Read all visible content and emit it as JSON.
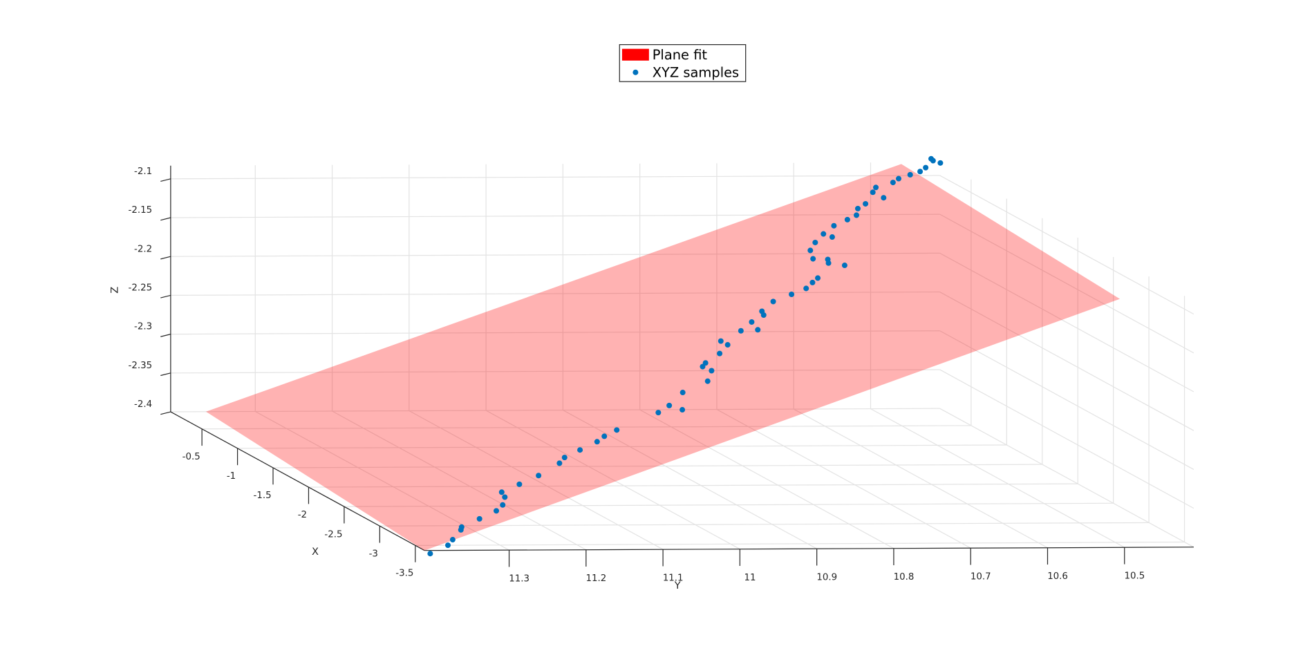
{
  "chart_data": {
    "type": "scatter3d",
    "xlabel": "X",
    "ylabel": "Y",
    "zlabel": "Z",
    "xlim": [
      -0.06,
      -3.63
    ],
    "ylim": [
      11.41,
      10.41
    ],
    "zlim": [
      -2.4,
      -2.083
    ],
    "xticks": [
      -0.5,
      -1,
      -1.5,
      -2,
      -2.5,
      -3,
      -3.5
    ],
    "yticks": [
      11.3,
      11.2,
      11.1,
      11,
      10.9,
      10.8,
      10.7,
      10.6,
      10.5
    ],
    "zticks": [
      -2.1,
      -2.15,
      -2.2,
      -2.25,
      -2.3,
      -2.35,
      -2.4
    ],
    "grid": true,
    "legend": "top",
    "series": [
      {
        "name": "Plane fit",
        "color": "#ff0000",
        "kind": "surface",
        "opacity": 0.3,
        "x": [
          -3.63,
          -0.556,
          -0.556,
          -3.63
        ],
        "y": [
          11.41,
          11.41,
          10.506,
          10.506
        ],
        "z": [
          -2.4,
          -2.375,
          -2.06,
          -2.08
        ]
      },
      {
        "name": "XYZ samples",
        "color": "#0072bd",
        "kind": "scatter",
        "x": [
          -3.71,
          -3.678,
          -3.615,
          -3.525,
          -3.492,
          -3.462,
          -3.439,
          -3.388,
          -3.288,
          -3.201,
          -3.179,
          -3.157,
          -3.083,
          -3.036,
          -3.004,
          -2.974,
          -2.935,
          -2.915,
          -2.872,
          -2.831,
          -2.961,
          -2.718,
          -2.69,
          -2.561,
          -2.457,
          -2.422,
          -2.361,
          -2.279,
          -2.183,
          -2.141,
          -2.076,
          -2.216,
          -1.982,
          -2.039,
          -1.892,
          -1.89,
          -1.879,
          -1.828,
          -1.794,
          -1.5,
          -1.365,
          -1.578,
          -1.631,
          -1.75,
          -1.282,
          -1.283,
          -1.203,
          -1.134,
          -1.118,
          -1.105,
          -1.016,
          -0.994,
          -0.859,
          -0.815,
          -1.0,
          -0.829,
          -0.811,
          -0.811,
          -0.81,
          -0.791,
          -0.684,
          -0.733,
          -0.792
        ],
        "y": [
          11.41,
          11.384,
          11.372,
          11.353,
          11.349,
          11.323,
          11.299,
          11.286,
          11.274,
          11.27,
          11.245,
          11.218,
          11.184,
          11.173,
          11.15,
          11.125,
          11.112,
          11.094,
          11.036,
          11.018,
          11.013,
          10.99,
          10.955,
          10.938,
          10.94,
          10.933,
          10.909,
          10.891,
          10.891,
          10.861,
          10.841,
          10.846,
          10.819,
          10.822,
          10.796,
          10.772,
          10.752,
          10.739,
          10.729,
          10.708,
          10.699,
          10.696,
          10.7,
          10.69,
          10.685,
          10.663,
          10.667,
          10.647,
          10.628,
          10.615,
          10.605,
          10.593,
          10.571,
          10.563,
          10.57,
          10.542,
          10.533,
          10.518,
          10.505,
          10.496,
          10.479,
          10.481,
          10.477
        ],
        "z": [
          -2.4,
          -2.391,
          -2.387,
          -2.379,
          -2.377,
          -2.368,
          -2.359,
          -2.354,
          -2.349,
          -2.347,
          -2.338,
          -2.328,
          -2.316,
          -2.311,
          -2.303,
          -2.294,
          -2.289,
          -2.282,
          -2.262,
          -2.255,
          -2.254,
          -2.244,
          -2.231,
          -2.224,
          -2.224,
          -2.221,
          -2.212,
          -2.205,
          -2.205,
          -2.194,
          -2.186,
          -2.189,
          -2.177,
          -2.179,
          -2.169,
          -2.16,
          -2.153,
          -2.148,
          -2.144,
          -2.134,
          -2.13,
          -2.131,
          -2.133,
          -2.13,
          -2.124,
          -2.117,
          -2.117,
          -2.11,
          -2.103,
          -2.098,
          -2.094,
          -2.089,
          -2.081,
          -2.077,
          -2.081,
          -2.07,
          -2.066,
          -2.061,
          -2.057,
          -2.053,
          -2.047,
          -2.047,
          -2.047
        ]
      }
    ]
  }
}
